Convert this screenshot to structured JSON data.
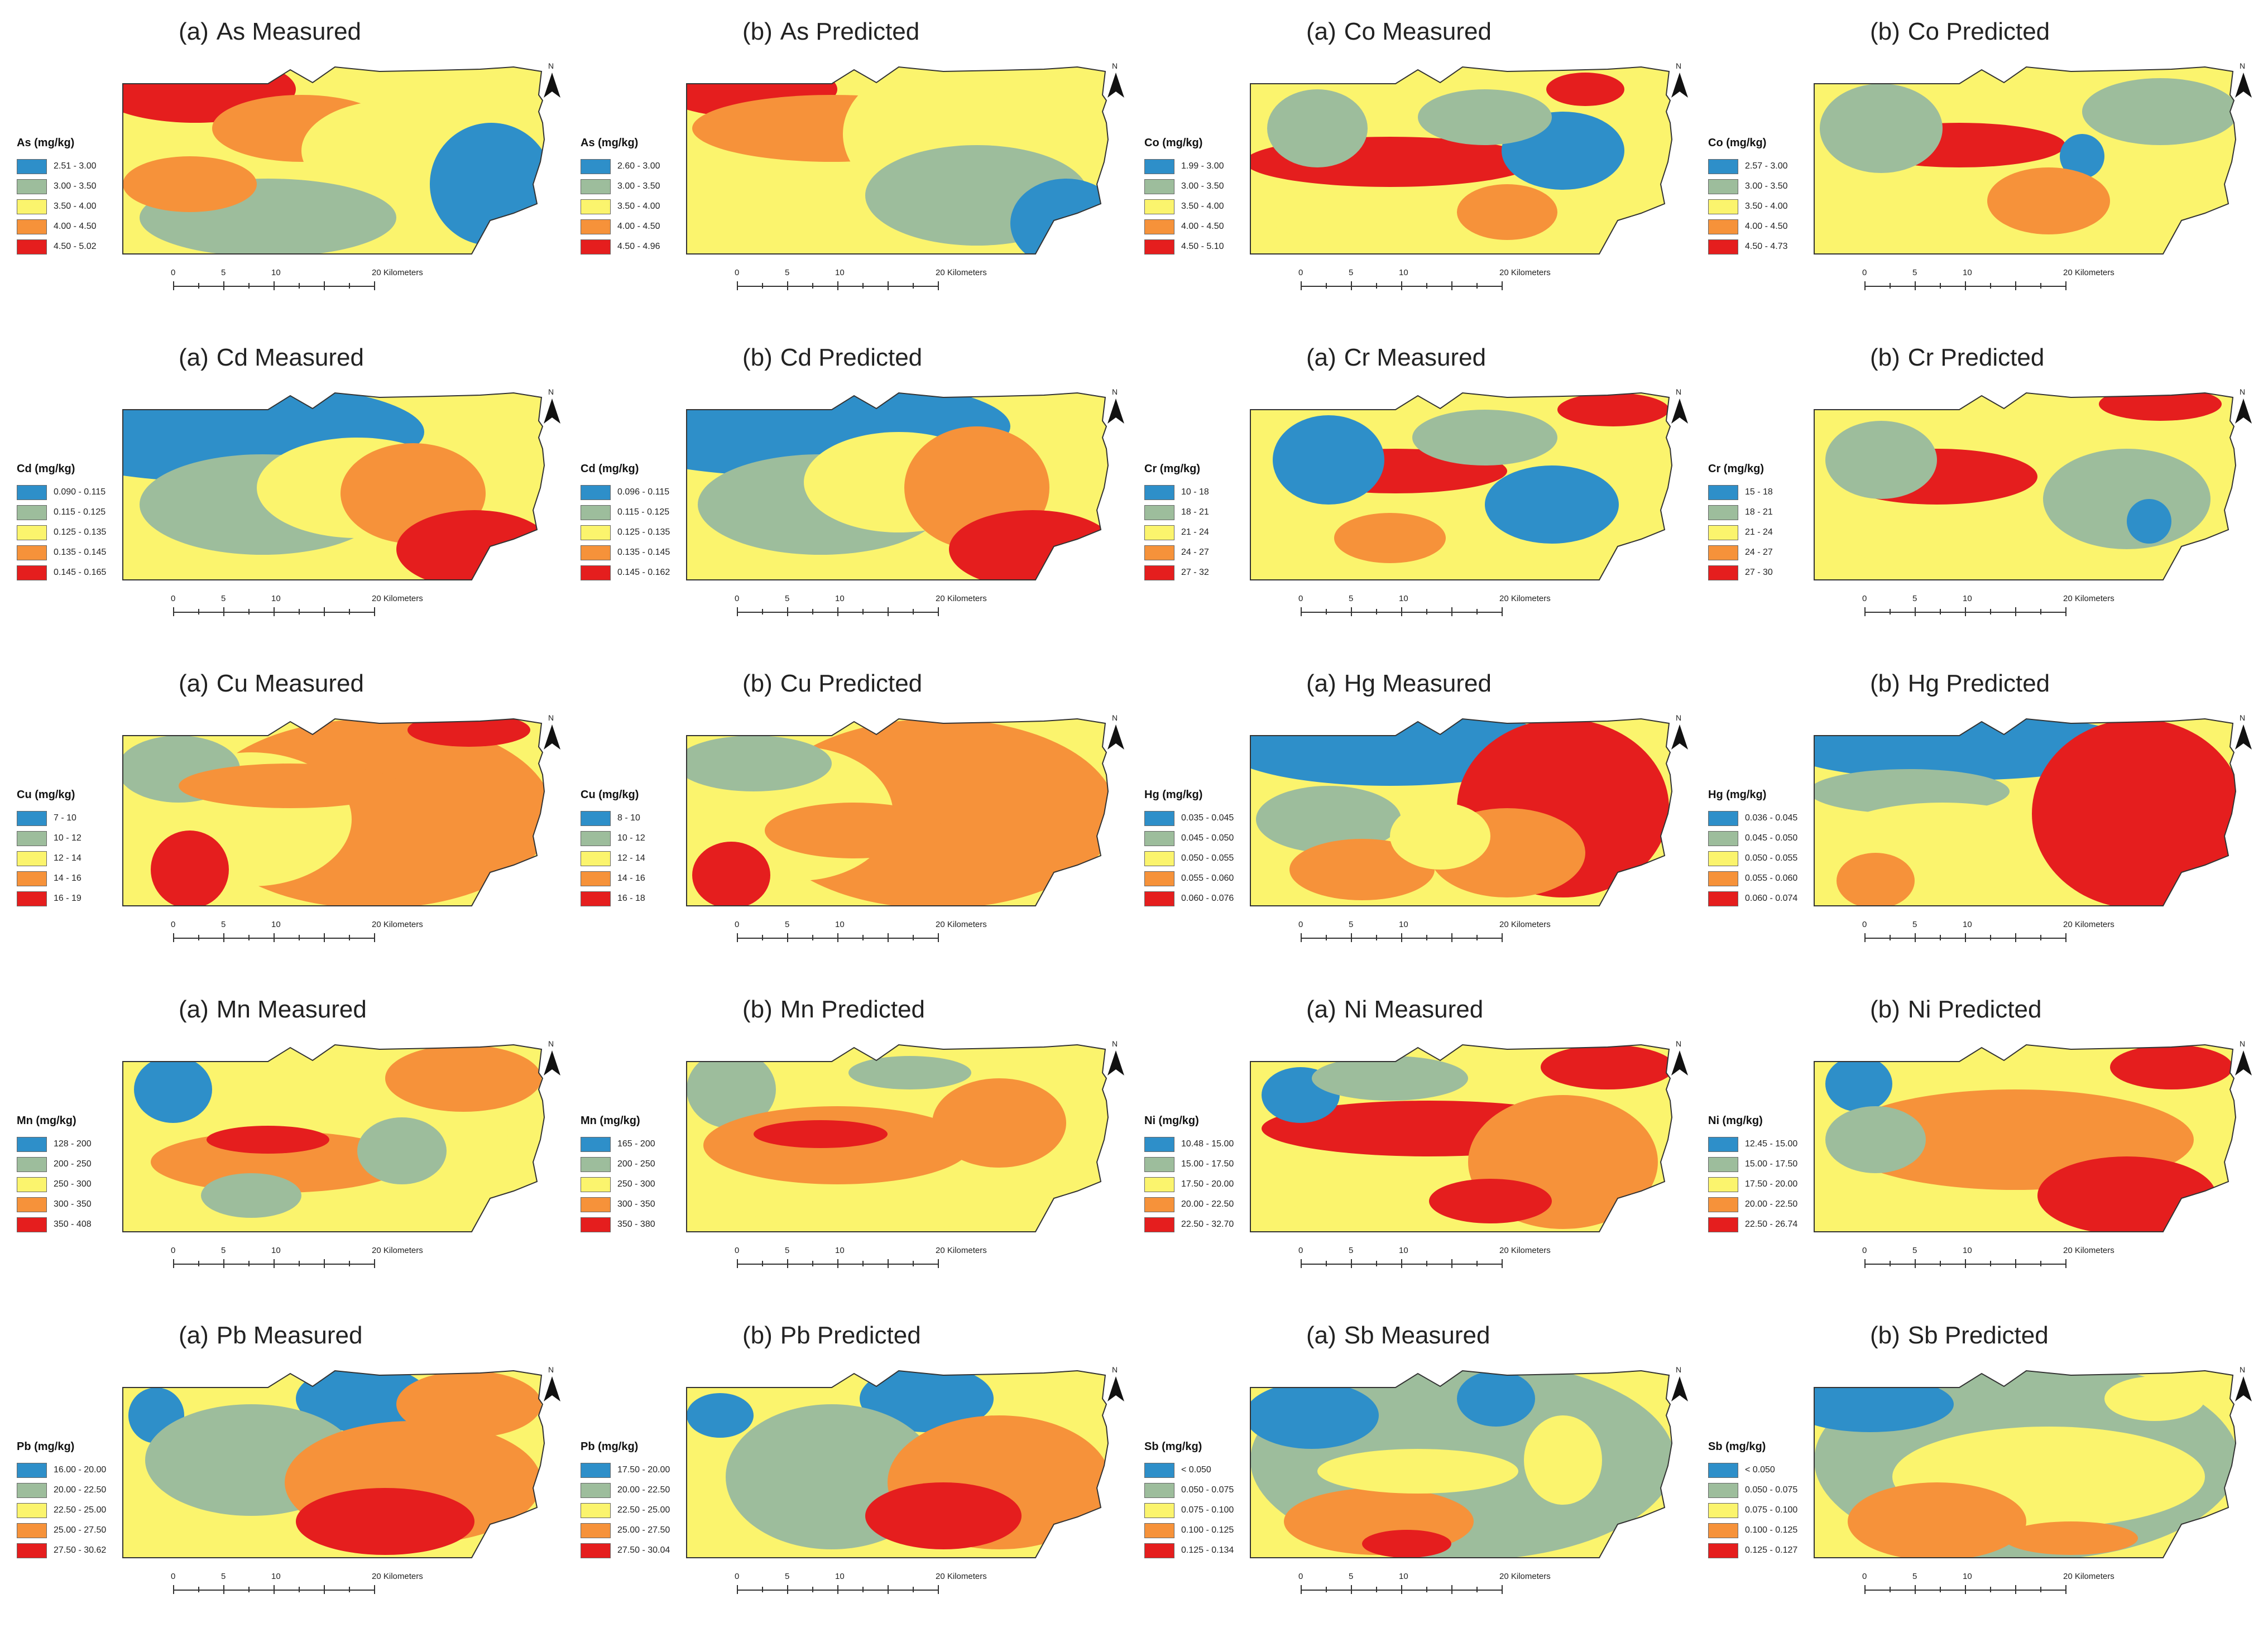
{
  "figure": {
    "colors": {
      "class1": "#2e8fc9",
      "class2": "#9dbd9c",
      "class3": "#fbf46d",
      "class4": "#f6923a",
      "class5": "#e51e1e",
      "outline": "#333333"
    },
    "north_arrow": {
      "letter": "N",
      "icon": "north-arrow-icon"
    },
    "scale_bar": {
      "ticks": [
        "0",
        "5",
        "10",
        "20 Kilometers"
      ]
    },
    "panels": [
      {
        "label": "(a)",
        "title": "As Measured",
        "legend_title": "As (mg/kg)",
        "classes": [
          "2.51 - 3.00",
          "3.00 - 3.50",
          "3.50 - 4.00",
          "4.00 - 4.50",
          "4.50 - 5.02"
        ]
      },
      {
        "label": "(b)",
        "title": "As Predicted",
        "legend_title": "As (mg/kg)",
        "classes": [
          "2.60 - 3.00",
          "3.00 - 3.50",
          "3.50 - 4.00",
          "4.00 - 4.50",
          "4.50 - 4.96"
        ]
      },
      {
        "label": "(a)",
        "title": "Co Measured",
        "legend_title": "Co (mg/kg)",
        "classes": [
          "1.99 - 3.00",
          "3.00 - 3.50",
          "3.50 - 4.00",
          "4.00 - 4.50",
          "4.50 - 5.10"
        ]
      },
      {
        "label": "(b)",
        "title": "Co Predicted",
        "legend_title": "Co (mg/kg)",
        "classes": [
          "2.57 - 3.00",
          "3.00 - 3.50",
          "3.50 - 4.00",
          "4.00 - 4.50",
          "4.50 - 4.73"
        ]
      },
      {
        "label": "(a)",
        "title": "Cd Measured",
        "legend_title": "Cd (mg/kg)",
        "classes": [
          "0.090 - 0.115",
          "0.115 - 0.125",
          "0.125 - 0.135",
          "0.135 - 0.145",
          "0.145 - 0.165"
        ]
      },
      {
        "label": "(b)",
        "title": "Cd Predicted",
        "legend_title": "Cd (mg/kg)",
        "classes": [
          "0.096 - 0.115",
          "0.115 - 0.125",
          "0.125 - 0.135",
          "0.135 - 0.145",
          "0.145 - 0.162"
        ]
      },
      {
        "label": "(a)",
        "title": "Cr Measured",
        "legend_title": "Cr (mg/kg)",
        "classes": [
          "10 - 18",
          "18 - 21",
          "21 - 24",
          "24 - 27",
          "27 - 32"
        ]
      },
      {
        "label": "(b)",
        "title": "Cr Predicted",
        "legend_title": "Cr (mg/kg)",
        "classes": [
          "15 - 18",
          "18 - 21",
          "21 - 24",
          "24 - 27",
          "27 - 30"
        ]
      },
      {
        "label": "(a)",
        "title": "Cu Measured",
        "legend_title": "Cu (mg/kg)",
        "classes": [
          "7 - 10",
          "10 - 12",
          "12 - 14",
          "14 - 16",
          "16 - 19"
        ]
      },
      {
        "label": "(b)",
        "title": "Cu Predicted",
        "legend_title": "Cu (mg/kg)",
        "classes": [
          "8 - 10",
          "10 - 12",
          "12 - 14",
          "14 - 16",
          "16 - 18"
        ]
      },
      {
        "label": "(a)",
        "title": "Hg Measured",
        "legend_title": "Hg (mg/kg)",
        "classes": [
          "0.035 - 0.045",
          "0.045 - 0.050",
          "0.050 - 0.055",
          "0.055 - 0.060",
          "0.060 - 0.076"
        ]
      },
      {
        "label": "(b)",
        "title": "Hg Predicted",
        "legend_title": "Hg (mg/kg)",
        "classes": [
          "0.036 - 0.045",
          "0.045 - 0.050",
          "0.050 - 0.055",
          "0.055 - 0.060",
          "0.060 - 0.074"
        ]
      },
      {
        "label": "(a)",
        "title": "Mn Measured",
        "legend_title": "Mn (mg/kg)",
        "classes": [
          "128 - 200",
          "200 - 250",
          "250 - 300",
          "300 - 350",
          "350 - 408"
        ]
      },
      {
        "label": "(b)",
        "title": "Mn Predicted",
        "legend_title": "Mn (mg/kg)",
        "classes": [
          "165 - 200",
          "200 - 250",
          "250 - 300",
          "300 - 350",
          "350 - 380"
        ]
      },
      {
        "label": "(a)",
        "title": "Ni Measured",
        "legend_title": "Ni (mg/kg)",
        "classes": [
          "10.48 - 15.00",
          "15.00 - 17.50",
          "17.50 - 20.00",
          "20.00 - 22.50",
          "22.50 - 32.70"
        ]
      },
      {
        "label": "(b)",
        "title": "Ni Predicted",
        "legend_title": "Ni (mg/kg)",
        "classes": [
          "12.45 - 15.00",
          "15.00 - 17.50",
          "17.50 - 20.00",
          "20.00 - 22.50",
          "22.50 - 26.74"
        ]
      },
      {
        "label": "(a)",
        "title": "Pb Measured",
        "legend_title": "Pb (mg/kg)",
        "classes": [
          "16.00 - 20.00",
          "20.00 - 22.50",
          "22.50 - 25.00",
          "25.00 - 27.50",
          "27.50 - 30.62"
        ]
      },
      {
        "label": "(b)",
        "title": "Pb Predicted",
        "legend_title": "Pb (mg/kg)",
        "classes": [
          "17.50 - 20.00",
          "20.00 - 22.50",
          "22.50 - 25.00",
          "25.00 - 27.50",
          "27.50 - 30.04"
        ]
      },
      {
        "label": "(a)",
        "title": "Sb Measured",
        "legend_title": "Sb (mg/kg)",
        "classes": [
          "< 0.050",
          "0.050 - 0.075",
          "0.075 - 0.100",
          "0.100 - 0.125",
          "0.125 - 0.134"
        ]
      },
      {
        "label": "(b)",
        "title": "Sb Predicted",
        "legend_title": "Sb (mg/kg)",
        "classes": [
          "< 0.050",
          "0.050 - 0.075",
          "0.075 - 0.100",
          "0.100 - 0.125",
          "0.125 - 0.127"
        ]
      }
    ]
  }
}
